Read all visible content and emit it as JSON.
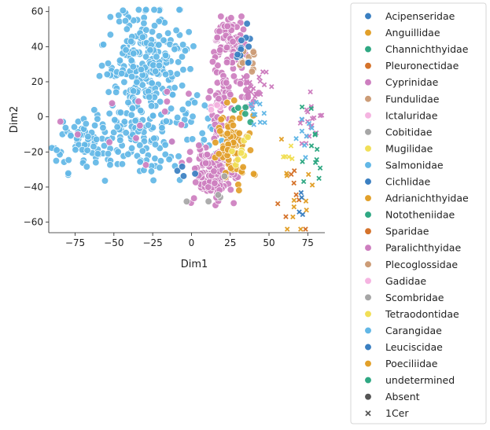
{
  "chart_data": {
    "type": "scatter",
    "title": "",
    "xlabel": "Dim1",
    "ylabel": "Dim2",
    "xlim": [
      -92,
      86
    ],
    "ylim": [
      -66,
      63
    ],
    "xticks": [
      -75,
      -50,
      -25,
      0,
      25,
      50,
      75
    ],
    "xtick_labels": [
      "−75",
      "−50",
      "−25",
      "0",
      "25",
      "50",
      "75"
    ],
    "yticks": [
      -60,
      -40,
      -20,
      0,
      20,
      40,
      60
    ],
    "ytick_labels": [
      "−60",
      "−40",
      "−20",
      "0",
      "20",
      "40",
      "60"
    ],
    "legend_placement": "outside-right",
    "hue_legend": [
      {
        "label": "Acipenseridae",
        "color": "#3a7fc1"
      },
      {
        "label": "Anguillidae",
        "color": "#e2a02a"
      },
      {
        "label": "Channichthyidae",
        "color": "#2fa883"
      },
      {
        "label": "Pleuronectidae",
        "color": "#d5732b"
      },
      {
        "label": "Cyprinidae",
        "color": "#cd7ebf"
      },
      {
        "label": "Fundulidae",
        "color": "#cc9c77"
      },
      {
        "label": "Ictaluridae",
        "color": "#f5b4e1"
      },
      {
        "label": "Cobitidae",
        "color": "#a6a6a6"
      },
      {
        "label": "Mugilidae",
        "color": "#f1df57"
      },
      {
        "label": "Salmonidae",
        "color": "#62b7e6"
      },
      {
        "label": "Cichlidae",
        "color": "#3a7fc1"
      },
      {
        "label": "Adrianichthyidae",
        "color": "#e2a02a"
      },
      {
        "label": "Nototheniidae",
        "color": "#2fa883"
      },
      {
        "label": "Sparidae",
        "color": "#d5732b"
      },
      {
        "label": "Paralichthyidae",
        "color": "#cd7ebf"
      },
      {
        "label": "Plecoglossidae",
        "color": "#cc9c77"
      },
      {
        "label": "Gadidae",
        "color": "#f5b4e1"
      },
      {
        "label": "Scombridae",
        "color": "#a6a6a6"
      },
      {
        "label": "Tetraodontidae",
        "color": "#f1df57"
      },
      {
        "label": "Carangidae",
        "color": "#62b7e6"
      },
      {
        "label": "Leuciscidae",
        "color": "#3a7fc1"
      },
      {
        "label": "Poeciliidae",
        "color": "#e2a02a"
      },
      {
        "label": "undetermined",
        "color": "#2fa883"
      }
    ],
    "style_legend": [
      {
        "label": "Absent",
        "marker": "circle",
        "color": "#555555"
      },
      {
        "label": "1Cer",
        "marker": "x",
        "color": "#555555"
      }
    ],
    "clusters": [
      {
        "name": "salmonidae-upper",
        "family": "Salmonidae",
        "marker": "circle",
        "n": 240,
        "cx": -30,
        "cy": 30,
        "sx": 13,
        "sy": 16
      },
      {
        "name": "salmonidae-left",
        "family": "Salmonidae",
        "marker": "circle",
        "n": 60,
        "cx": -72,
        "cy": -12,
        "sx": 10,
        "sy": 9
      },
      {
        "name": "salmonidae-middle",
        "family": "Salmonidae",
        "marker": "circle",
        "n": 110,
        "cx": -35,
        "cy": -12,
        "sx": 14,
        "sy": 11
      },
      {
        "name": "salmonidae-right",
        "family": "Salmonidae",
        "marker": "circle",
        "n": 25,
        "cx": 8,
        "cy": -3,
        "sx": 6,
        "sy": 10
      },
      {
        "name": "cyprinidae-top",
        "family": "Cyprinidae",
        "marker": "circle",
        "n": 90,
        "cx": 24,
        "cy": 42,
        "sx": 5,
        "sy": 8
      },
      {
        "name": "cyprinidae-mid",
        "family": "Cyprinidae",
        "marker": "circle",
        "n": 40,
        "cx": 28,
        "cy": 15,
        "sx": 8,
        "sy": 6
      },
      {
        "name": "cyprinidae-low",
        "family": "Cyprinidae",
        "marker": "circle",
        "n": 130,
        "cx": 13,
        "cy": -32,
        "sx": 7,
        "sy": 8
      },
      {
        "name": "cyprinidae-strip",
        "family": "Cyprinidae",
        "marker": "circle",
        "n": 40,
        "cx": 20,
        "cy": -15,
        "sx": 4,
        "sy": 14
      },
      {
        "name": "cyprinidae-scatter",
        "family": "Cyprinidae",
        "marker": "circle",
        "n": 14,
        "cx": -30,
        "cy": -10,
        "sx": 22,
        "sy": 14
      },
      {
        "name": "poeciliidae",
        "family": "Poeciliidae",
        "marker": "circle",
        "n": 70,
        "cx": 26,
        "cy": -15,
        "sx": 6,
        "sy": 10
      },
      {
        "name": "fundulidae",
        "family": "Fundulidae",
        "marker": "circle",
        "n": 14,
        "cx": 38,
        "cy": 33,
        "sx": 5,
        "sy": 4
      },
      {
        "name": "leuciscidae",
        "family": "Leuciscidae",
        "marker": "circle",
        "n": 12,
        "cx": 34,
        "cy": 40,
        "sx": 3,
        "sy": 6
      },
      {
        "name": "mugilidae",
        "family": "Mugilidae",
        "marker": "circle",
        "n": 8,
        "cx": 30,
        "cy": -18,
        "sx": 3,
        "sy": 6
      },
      {
        "name": "channichthyidae",
        "family": "Channichthyidae",
        "marker": "circle",
        "n": 5,
        "cx": 33,
        "cy": 4,
        "sx": 4,
        "sy": 4
      },
      {
        "name": "cobitidae",
        "family": "Cobitidae",
        "marker": "circle",
        "n": 5,
        "cx": 10,
        "cy": -45,
        "sx": 9,
        "sy": 6
      },
      {
        "name": "gadidae",
        "family": "Gadidae",
        "marker": "circle",
        "n": 4,
        "cx": 16,
        "cy": 8,
        "sx": 3,
        "sy": 3
      },
      {
        "name": "acipenseridae",
        "family": "Acipenseridae",
        "marker": "circle",
        "n": 4,
        "cx": -5,
        "cy": -33,
        "sx": 4,
        "sy": 3
      },
      {
        "name": "paralichthyidae-cer-a",
        "family": "Paralichthyidae",
        "marker": "x",
        "n": 22,
        "cx": 40,
        "cy": 18,
        "sx": 5,
        "sy": 5
      },
      {
        "name": "paralichthyidae-cer-b",
        "family": "Paralichthyidae",
        "marker": "x",
        "n": 18,
        "cx": 76,
        "cy": -5,
        "sx": 6,
        "sy": 8
      },
      {
        "name": "salmonidae-cer-a",
        "family": "Salmonidae",
        "marker": "x",
        "n": 10,
        "cx": 43,
        "cy": 2,
        "sx": 3,
        "sy": 4
      },
      {
        "name": "salmonidae-cer-b",
        "family": "Salmonidae",
        "marker": "x",
        "n": 8,
        "cx": 70,
        "cy": -10,
        "sx": 5,
        "sy": 8
      },
      {
        "name": "poeciliidae-cer",
        "family": "Poeciliidae",
        "marker": "x",
        "n": 12,
        "cx": 68,
        "cy": -40,
        "sx": 6,
        "sy": 12
      },
      {
        "name": "sparidae-cer",
        "family": "Sparidae",
        "marker": "x",
        "n": 8,
        "cx": 66,
        "cy": -40,
        "sx": 4,
        "sy": 12
      },
      {
        "name": "undetermined-cer",
        "family": "undetermined",
        "marker": "x",
        "n": 12,
        "cx": 77,
        "cy": -18,
        "sx": 4,
        "sy": 14
      },
      {
        "name": "leuciscidae-cer",
        "family": "Leuciscidae",
        "marker": "x",
        "n": 4,
        "cx": 70,
        "cy": -50,
        "sx": 4,
        "sy": 5
      },
      {
        "name": "mugilidae-cer",
        "family": "Mugilidae",
        "marker": "x",
        "n": 5,
        "cx": 64,
        "cy": -23,
        "sx": 3,
        "sy": 3
      }
    ]
  }
}
